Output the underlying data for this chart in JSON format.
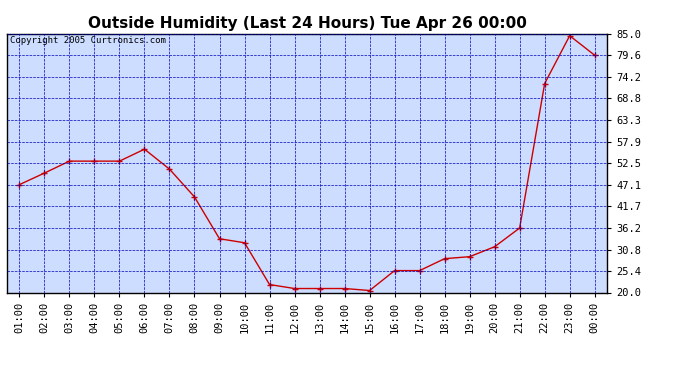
{
  "title": "Outside Humidity (Last 24 Hours) Tue Apr 26 00:00",
  "copyright": "Copyright 2005 Curtronics.com",
  "x_labels": [
    "01:00",
    "02:00",
    "03:00",
    "04:00",
    "05:00",
    "06:00",
    "07:00",
    "08:00",
    "09:00",
    "10:00",
    "11:00",
    "12:00",
    "13:00",
    "14:00",
    "15:00",
    "16:00",
    "17:00",
    "18:00",
    "19:00",
    "20:00",
    "21:00",
    "22:00",
    "23:00",
    "00:00"
  ],
  "x_values": [
    1,
    2,
    3,
    4,
    5,
    6,
    7,
    8,
    9,
    10,
    11,
    12,
    13,
    14,
    15,
    16,
    17,
    18,
    19,
    20,
    21,
    22,
    23,
    24
  ],
  "y_values": [
    47.1,
    50.0,
    53.0,
    53.0,
    53.0,
    56.0,
    51.0,
    44.0,
    33.5,
    32.5,
    22.0,
    21.0,
    21.0,
    21.0,
    20.5,
    25.5,
    25.5,
    28.5,
    29.0,
    31.5,
    36.2,
    72.5,
    84.5,
    79.6
  ],
  "y_ticks": [
    20.0,
    25.4,
    30.8,
    36.2,
    41.7,
    47.1,
    52.5,
    57.9,
    63.3,
    68.8,
    74.2,
    79.6,
    85.0
  ],
  "y_min": 20.0,
  "y_max": 85.0,
  "line_color": "#cc0000",
  "marker_color": "#cc0000",
  "fig_bg_color": "#ffffff",
  "plot_bg_color": "#ccddff",
  "grid_color": "#0000bb",
  "title_fontsize": 11,
  "copyright_fontsize": 6.5,
  "tick_fontsize": 7.5
}
